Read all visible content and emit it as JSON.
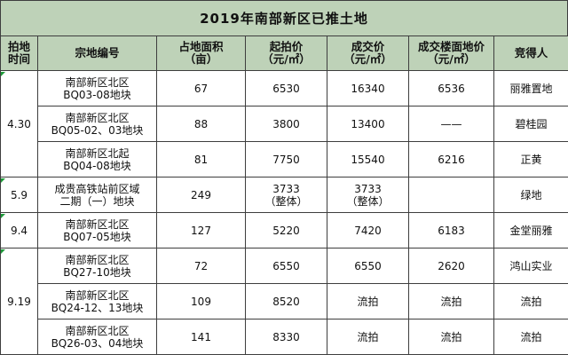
{
  "title": "2019年南部新区已推土地",
  "columns": [
    {
      "line1": "拍地",
      "line2": "时间"
    },
    {
      "line1": "宗地编号",
      "line2": ""
    },
    {
      "line1": "占地面积",
      "line2": "（亩）"
    },
    {
      "line1": "起拍价",
      "line2": "（元/㎡）"
    },
    {
      "line1": "成交价",
      "line2": "（元/㎡）"
    },
    {
      "line1": "成交楼面地价",
      "line2": "（元/㎡）"
    },
    {
      "line1": "竞得人",
      "line2": ""
    }
  ],
  "groups": [
    {
      "date": "4.30",
      "rows": [
        {
          "name1": "南部新区北区",
          "name2": "BQ03-08地块",
          "area": "67",
          "start1": "6530",
          "start2": "",
          "deal1": "16340",
          "deal2": "",
          "floor": "6536",
          "winner": "丽雅置地"
        },
        {
          "name1": "南部新区北区",
          "name2": "BQ05-02、03地块",
          "area": "88",
          "start1": "3800",
          "start2": "",
          "deal1": "13400",
          "deal2": "",
          "floor": "——",
          "winner": "碧桂园"
        },
        {
          "name1": "南部新区北起",
          "name2": "BQ04-08地块",
          "area": "81",
          "start1": "7750",
          "start2": "",
          "deal1": "15540",
          "deal2": "",
          "floor": "6216",
          "winner": "正黄"
        }
      ]
    },
    {
      "date": "5.9",
      "rows": [
        {
          "name1": "成贵高铁站前区域",
          "name2": "二期（一）地块",
          "area": "249",
          "start1": "3733",
          "start2": "（整体）",
          "deal1": "3733",
          "deal2": "（整体）",
          "floor": "",
          "winner": "绿地"
        }
      ]
    },
    {
      "date": "9.4",
      "rows": [
        {
          "name1": "南部新区北区",
          "name2": "BQ07-05地块",
          "area": "127",
          "start1": "5220",
          "start2": "",
          "deal1": "7420",
          "deal2": "",
          "floor": "6183",
          "winner": "金堂丽雅"
        }
      ]
    },
    {
      "date": "9.19",
      "rows": [
        {
          "name1": "南部新区北区",
          "name2": "BQ27-10地块",
          "area": "72",
          "start1": "6550",
          "start2": "",
          "deal1": "6550",
          "deal2": "",
          "floor": "2620",
          "winner": "鸿山实业"
        },
        {
          "name1": "南部新区北区",
          "name2": "BQ24-12、13地块",
          "area": "109",
          "start1": "8520",
          "start2": "",
          "deal1": "流拍",
          "deal2": "",
          "floor": "流拍",
          "winner": "流拍"
        },
        {
          "name1": "南部新区北区",
          "name2": "BQ26-03、04地块",
          "area": "141",
          "start1": "8330",
          "start2": "",
          "deal1": "流拍",
          "deal2": "",
          "floor": "流拍",
          "winner": "流拍"
        }
      ]
    }
  ],
  "colors": {
    "header_bg": "#bed2b8",
    "border": "#3e3e3e",
    "corner_mark": "#1f9a3a"
  }
}
